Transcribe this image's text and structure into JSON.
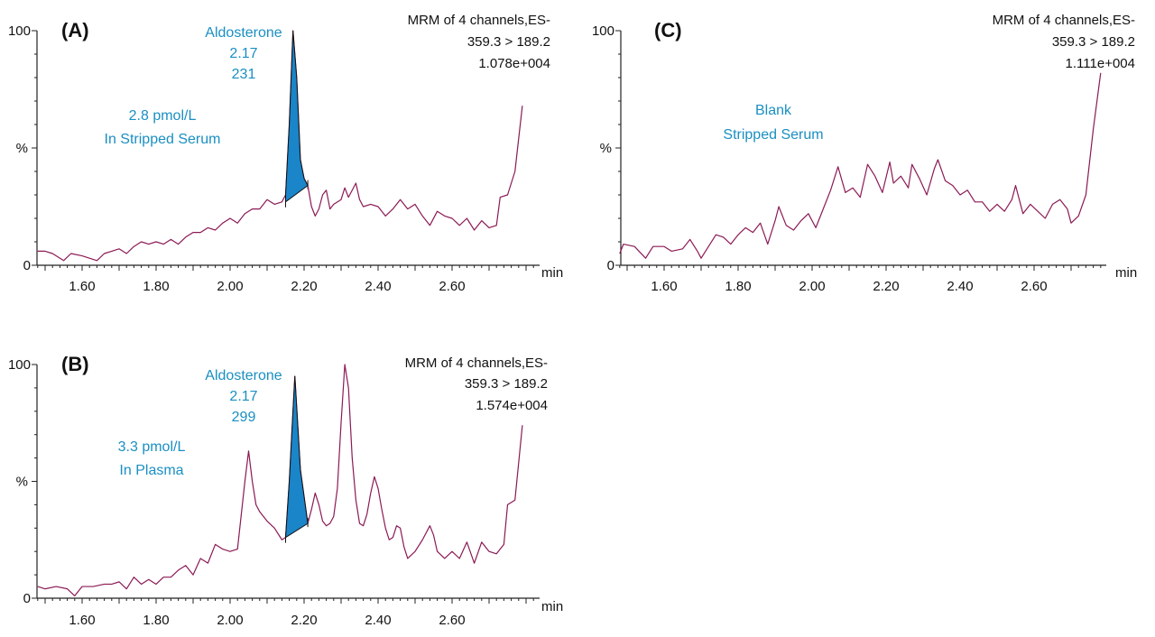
{
  "chart_data": [
    {
      "type": "line",
      "panel": "(A)",
      "xlabel": "min",
      "ylabel": "%",
      "xlim": [
        1.48,
        2.84
      ],
      "ylim": [
        0,
        100
      ],
      "x_ticks": [
        "1.60",
        "1.80",
        "2.00",
        "2.20",
        "2.40",
        "2.60"
      ],
      "y_ticks": [
        "0",
        "100"
      ],
      "header": [
        "MRM of 4 channels,ES-",
        "359.3 > 189.2",
        "1.078e+004"
      ],
      "peak_label": [
        "Aldosterone",
        "2.17",
        "231"
      ],
      "annotation": [
        "2.8 pmol/L",
        "In Stripped Serum"
      ],
      "integrated_peak": {
        "start": 2.15,
        "end": 2.21,
        "baseline": [
          27,
          34
        ]
      },
      "trace_color": "#8b1a55",
      "peak_fill": "#1a85c8",
      "x": [
        1.48,
        1.5,
        1.52,
        1.55,
        1.57,
        1.6,
        1.62,
        1.64,
        1.66,
        1.68,
        1.7,
        1.72,
        1.74,
        1.76,
        1.78,
        1.8,
        1.82,
        1.84,
        1.86,
        1.88,
        1.9,
        1.92,
        1.94,
        1.96,
        1.98,
        2.0,
        2.02,
        2.04,
        2.06,
        2.08,
        2.1,
        2.12,
        2.14,
        2.15,
        2.16,
        2.17,
        2.18,
        2.19,
        2.2,
        2.21,
        2.22,
        2.23,
        2.24,
        2.25,
        2.26,
        2.27,
        2.28,
        2.3,
        2.31,
        2.32,
        2.34,
        2.35,
        2.36,
        2.38,
        2.4,
        2.42,
        2.44,
        2.46,
        2.48,
        2.5,
        2.52,
        2.54,
        2.56,
        2.58,
        2.6,
        2.62,
        2.64,
        2.66,
        2.68,
        2.7,
        2.72,
        2.73,
        2.75,
        2.77,
        2.79
      ],
      "y": [
        6,
        6,
        5,
        2,
        5,
        4,
        3,
        2,
        5,
        6,
        7,
        5,
        8,
        10,
        9,
        10,
        9,
        11,
        9,
        12,
        14,
        14,
        16,
        15,
        18,
        20,
        18,
        22,
        24,
        24,
        28,
        26,
        27,
        30,
        60,
        100,
        80,
        45,
        37,
        34,
        25,
        21,
        24,
        30,
        32,
        24,
        26,
        28,
        33,
        29,
        35,
        28,
        25,
        26,
        25,
        21,
        24,
        28,
        24,
        26,
        21,
        17,
        23,
        21,
        20,
        17,
        20,
        15,
        19,
        16,
        17,
        29,
        30,
        40,
        68
      ]
    },
    {
      "type": "line",
      "panel": "(B)",
      "xlabel": "min",
      "ylabel": "%",
      "xlim": [
        1.48,
        2.84
      ],
      "ylim": [
        0,
        100
      ],
      "x_ticks": [
        "1.60",
        "1.80",
        "2.00",
        "2.20",
        "2.40",
        "2.60"
      ],
      "y_ticks": [
        "0",
        "100"
      ],
      "header": [
        "MRM of 4 channels,ES-",
        "359.3 > 189.2",
        "1.574e+004"
      ],
      "peak_label": [
        "Aldosterone",
        "2.17",
        "299"
      ],
      "annotation": [
        "3.3 pmol/L",
        "In Plasma"
      ],
      "integrated_peak": {
        "start": 2.15,
        "end": 2.21,
        "baseline": [
          26,
          32
        ]
      },
      "trace_color": "#8b1a55",
      "peak_fill": "#1a85c8",
      "x": [
        1.48,
        1.5,
        1.53,
        1.56,
        1.58,
        1.6,
        1.63,
        1.66,
        1.68,
        1.7,
        1.72,
        1.74,
        1.76,
        1.78,
        1.8,
        1.82,
        1.84,
        1.86,
        1.88,
        1.9,
        1.92,
        1.94,
        1.96,
        1.98,
        2.0,
        2.02,
        2.04,
        2.05,
        2.06,
        2.07,
        2.08,
        2.1,
        2.12,
        2.14,
        2.15,
        2.16,
        2.175,
        2.19,
        2.21,
        2.22,
        2.23,
        2.24,
        2.25,
        2.26,
        2.27,
        2.28,
        2.29,
        2.3,
        2.31,
        2.32,
        2.33,
        2.34,
        2.35,
        2.36,
        2.37,
        2.38,
        2.39,
        2.4,
        2.41,
        2.42,
        2.43,
        2.44,
        2.45,
        2.46,
        2.47,
        2.48,
        2.5,
        2.52,
        2.54,
        2.55,
        2.56,
        2.58,
        2.6,
        2.62,
        2.64,
        2.66,
        2.68,
        2.7,
        2.72,
        2.74,
        2.75,
        2.77,
        2.79
      ],
      "y": [
        5,
        4,
        5,
        4,
        1,
        5,
        5,
        6,
        6,
        7,
        4,
        9,
        6,
        8,
        6,
        9,
        9,
        12,
        14,
        10,
        17,
        15,
        23,
        21,
        20,
        21,
        50,
        63,
        50,
        40,
        37,
        33,
        30,
        25,
        26,
        50,
        95,
        55,
        32,
        38,
        45,
        40,
        33,
        31,
        32,
        35,
        47,
        75,
        100,
        90,
        60,
        42,
        32,
        31,
        36,
        45,
        52,
        47,
        38,
        30,
        25,
        26,
        31,
        30,
        22,
        17,
        20,
        25,
        31,
        27,
        20,
        17,
        20,
        17,
        24,
        15,
        24,
        20,
        19,
        23,
        40,
        42,
        74
      ]
    },
    {
      "type": "line",
      "panel": "(C)",
      "xlabel": "min",
      "ylabel": "%",
      "xlim": [
        1.48,
        2.84
      ],
      "ylim": [
        0,
        100
      ],
      "x_ticks": [
        "1.60",
        "1.80",
        "2.00",
        "2.20",
        "2.40",
        "2.60"
      ],
      "y_ticks": [
        "0",
        "100"
      ],
      "header": [
        "MRM of 4 channels,ES-",
        "359.3 > 189.2",
        "1.111e+004"
      ],
      "annotation": [
        "Blank",
        "Stripped Serum"
      ],
      "trace_color": "#8b1a55",
      "x": [
        1.48,
        1.49,
        1.52,
        1.55,
        1.57,
        1.6,
        1.62,
        1.65,
        1.67,
        1.69,
        1.7,
        1.72,
        1.74,
        1.76,
        1.78,
        1.8,
        1.82,
        1.84,
        1.86,
        1.88,
        1.9,
        1.91,
        1.93,
        1.95,
        1.97,
        1.99,
        2.01,
        2.03,
        2.05,
        2.07,
        2.09,
        2.11,
        2.13,
        2.15,
        2.17,
        2.19,
        2.21,
        2.22,
        2.24,
        2.26,
        2.27,
        2.29,
        2.31,
        2.33,
        2.34,
        2.36,
        2.38,
        2.4,
        2.42,
        2.44,
        2.46,
        2.48,
        2.5,
        2.52,
        2.54,
        2.55,
        2.57,
        2.59,
        2.61,
        2.63,
        2.65,
        2.67,
        2.69,
        2.7,
        2.72,
        2.74,
        2.76,
        2.78
      ],
      "y": [
        5,
        9,
        8,
        3,
        8,
        8,
        6,
        7,
        11,
        6,
        3,
        8,
        13,
        12,
        9,
        13,
        16,
        14,
        18,
        9,
        19,
        25,
        17,
        15,
        19,
        22,
        16,
        24,
        32,
        42,
        31,
        33,
        29,
        43,
        38,
        31,
        44,
        35,
        38,
        33,
        43,
        37,
        30,
        41,
        45,
        36,
        34,
        30,
        32,
        27,
        27,
        23,
        26,
        23,
        28,
        34,
        22,
        26,
        23,
        20,
        26,
        28,
        24,
        18,
        21,
        30,
        58,
        82
      ]
    }
  ]
}
